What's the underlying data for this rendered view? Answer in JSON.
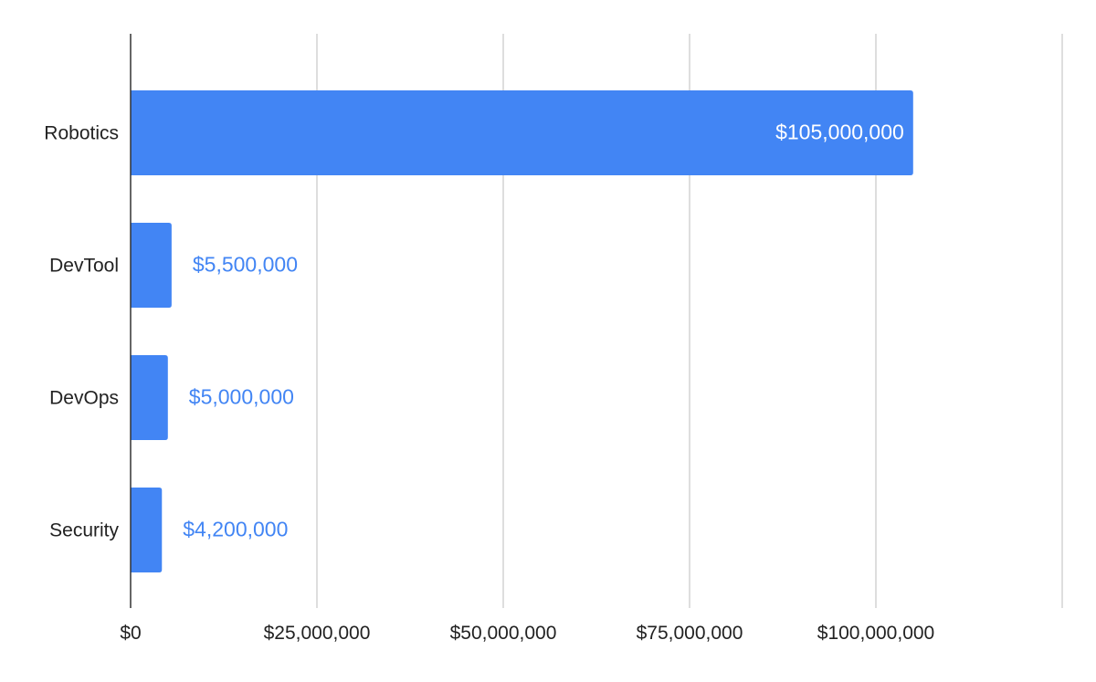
{
  "chart_data": {
    "type": "bar",
    "orientation": "horizontal",
    "title": "",
    "xlabel": "",
    "ylabel": "",
    "categories": [
      "Robotics",
      "DevTool",
      "DevOps",
      "Security"
    ],
    "values": [
      105000000,
      5500000,
      5000000,
      4200000
    ],
    "data_labels": [
      "$105,000,000",
      "$5,500,000",
      "$5,000,000",
      "$4,200,000"
    ],
    "xlim": [
      0,
      125000000
    ],
    "x_ticks": [
      0,
      25000000,
      50000000,
      75000000,
      100000000,
      125000000
    ],
    "x_tick_labels": [
      "$0",
      "$25,000,000",
      "$50,000,000",
      "$75,000,000",
      "$100,000,000",
      ""
    ],
    "grid": true,
    "legend": "none",
    "colors": {
      "bar": "#4285f4",
      "label_outside": "#4285f4",
      "label_inside": "#ffffff",
      "grid": "#cccccc",
      "axis": "#333333",
      "text": "#222222"
    }
  }
}
